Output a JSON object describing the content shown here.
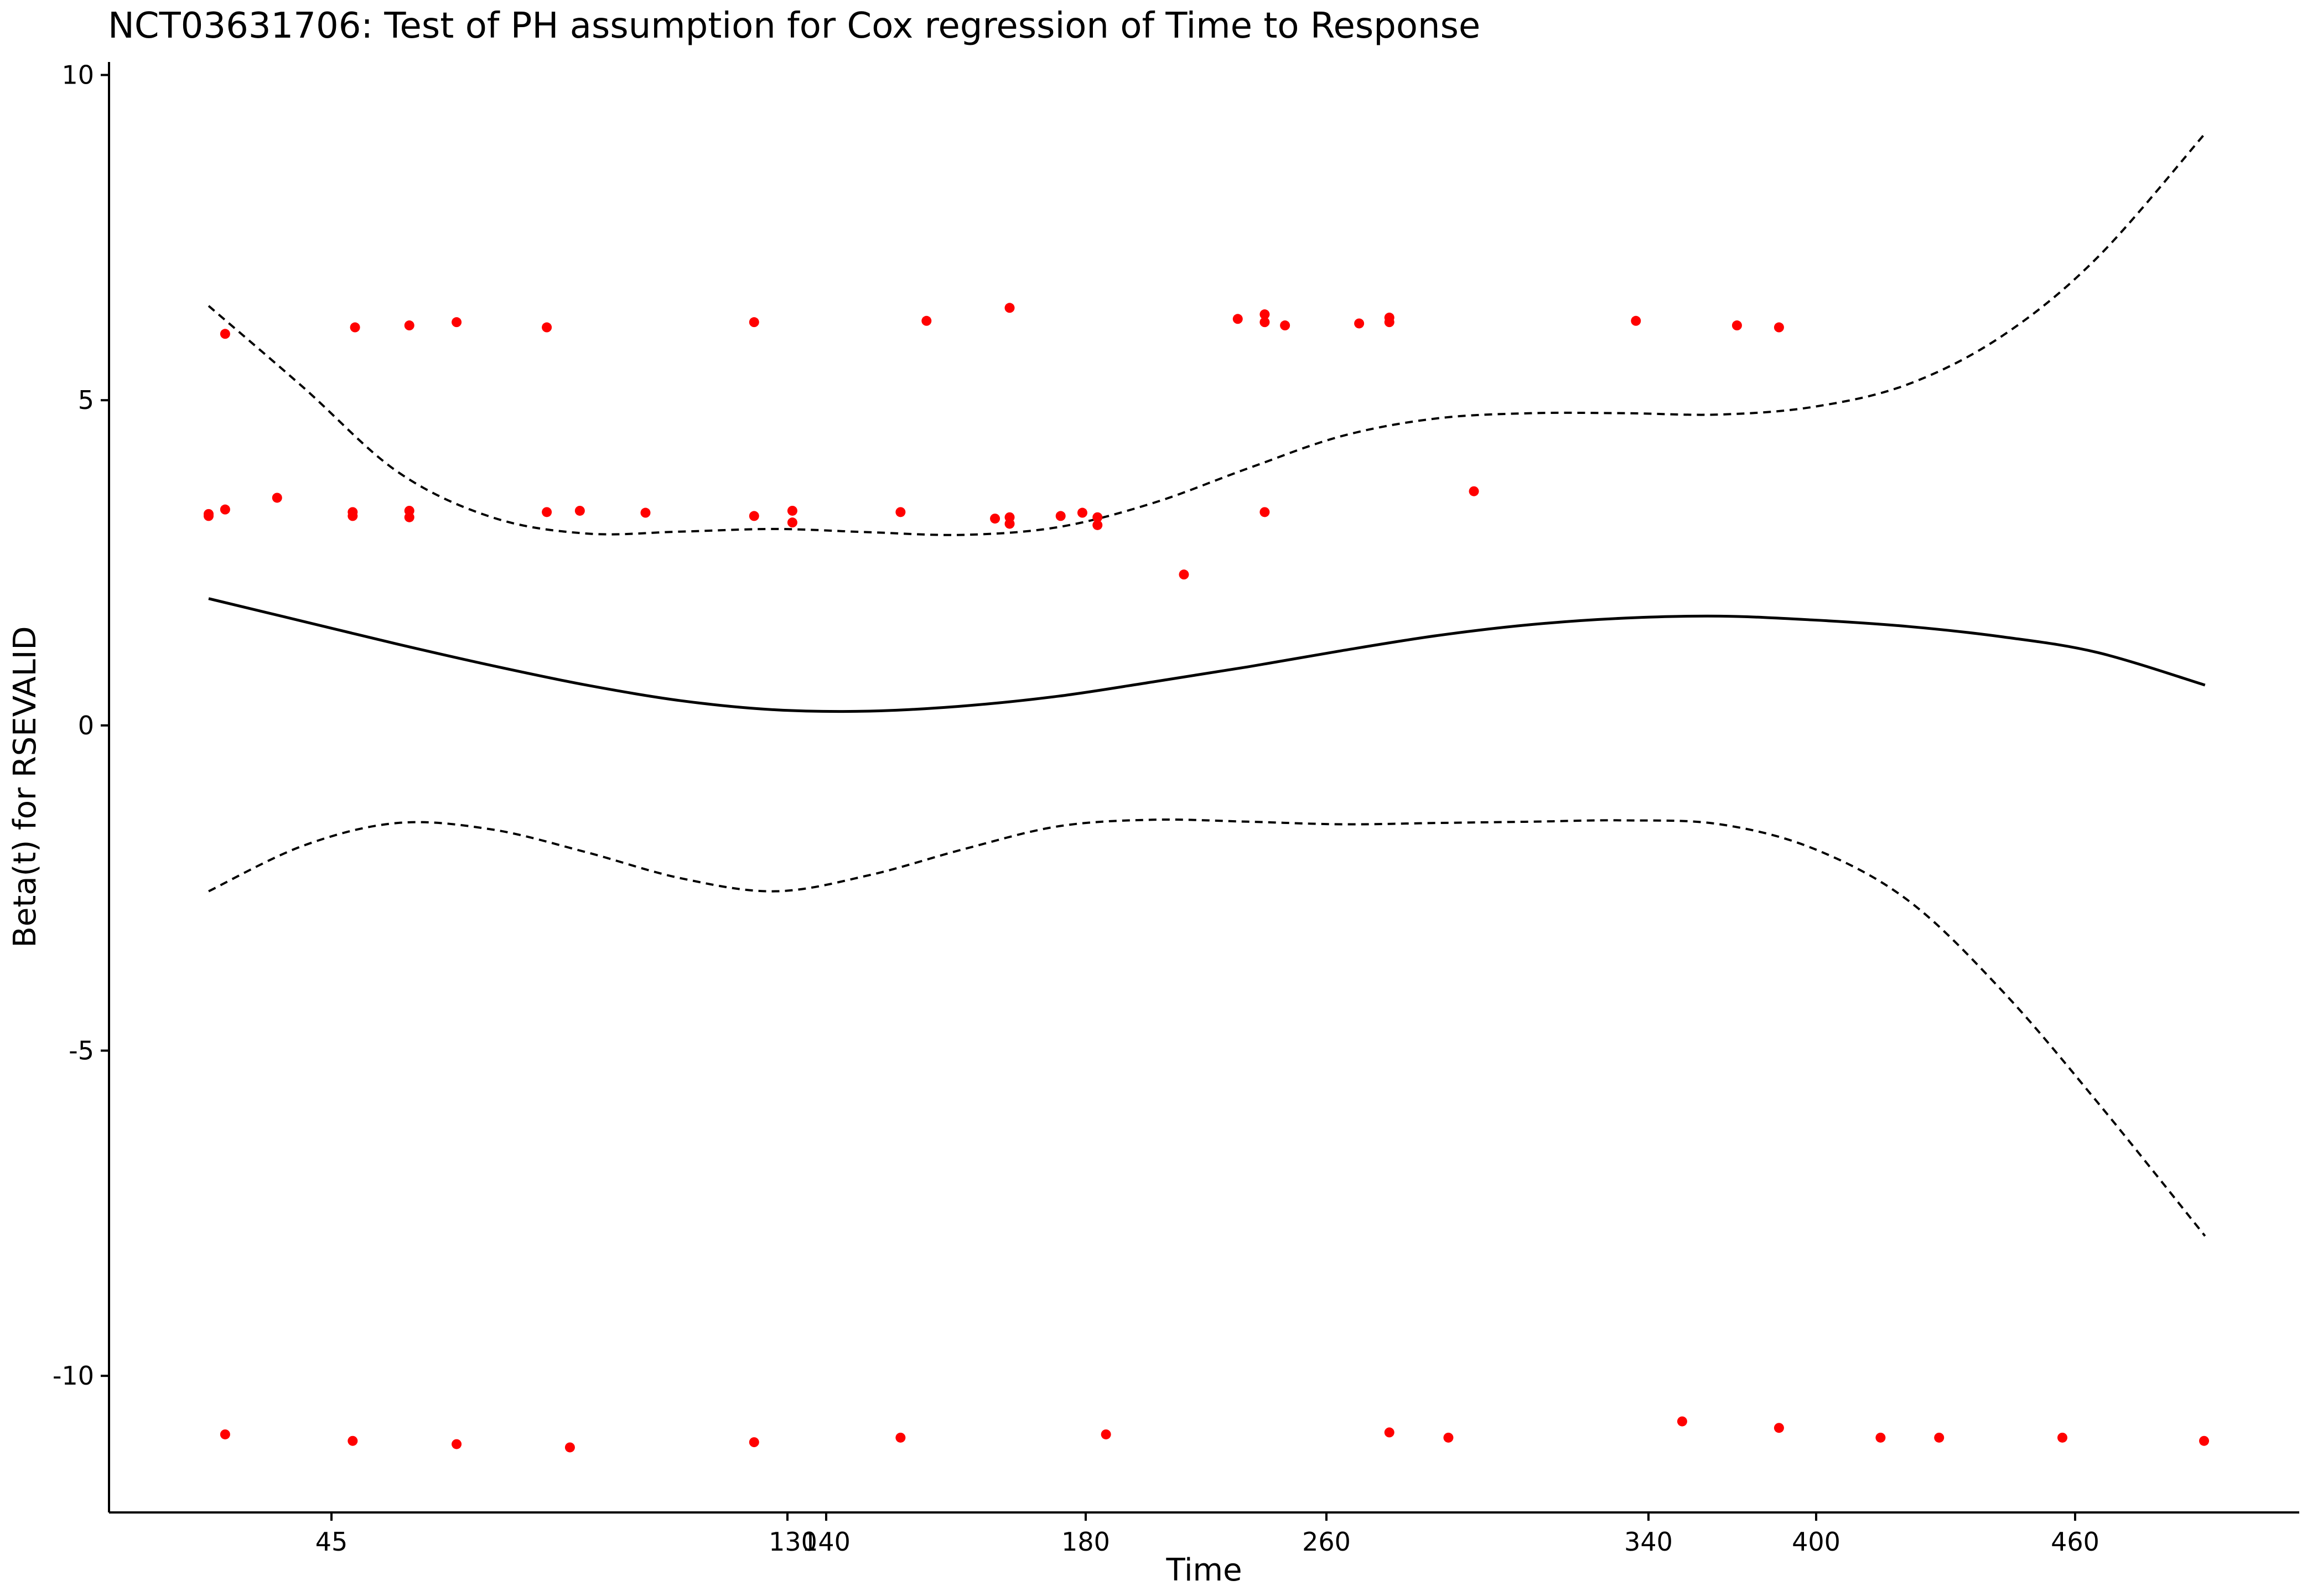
{
  "chart_data": {
    "type": "scatter",
    "title": "NCT03631706: Test of PH assumption for Cox regression of Time to Response",
    "xlabel": "Time",
    "ylabel": "Beta(t) for RSEVALID",
    "x_tick_labels": [
      "45",
      "130",
      "140",
      "180",
      "260",
      "340",
      "400",
      "460"
    ],
    "y_ticks": [
      10,
      5,
      0,
      -5,
      -10
    ],
    "y_tick_labels": [
      "10",
      "5",
      "0",
      "-5",
      "-10"
    ],
    "ylim": [
      -12.1,
      10.2
    ],
    "grid": false,
    "legend": "none",
    "colors": {
      "points": "#ff0000",
      "curves": "#000000",
      "axes": "#000000",
      "background": "#ffffff"
    },
    "series": [
      {
        "kind": "points",
        "x_rank": [
          1.0,
          1.35,
          4.05,
          5.25,
          8.16,
          8.86,
          12.55,
          13.36,
          15.65,
          17.96,
          19.04,
          19.82,
          23.36,
          27.79,
          1.0,
          2.45,
          4.05,
          5.25,
          10.25,
          13.36,
          17.65,
          17.96,
          19.5,
          19.82,
          21.65,
          22.79,
          23.36,
          23.79,
          25.36,
          26.0,
          31.22,
          33.36,
          34.25,
          1.35,
          4.1,
          5.25,
          6.25,
          8.16,
          12.55,
          16.2,
          17.96,
          23.36,
          26.0,
          27.25,
          36.4,
          37.64,
          1.35,
          4.05,
          6.25,
          8.65,
          12.55,
          15.65,
          20.0,
          26.0,
          32.2,
          34.25,
          40.25,
          43.25
        ],
        "y": [
          3.25,
          3.32,
          3.22,
          3.3,
          3.28,
          3.3,
          3.22,
          3.12,
          3.28,
          3.2,
          3.22,
          3.2,
          3.28,
          3.6,
          3.22,
          3.5,
          3.28,
          3.2,
          3.27,
          3.3,
          3.18,
          3.1,
          3.27,
          3.08,
          2.32,
          6.25,
          6.2,
          6.15,
          6.18,
          6.2,
          6.22,
          6.15,
          6.12,
          6.02,
          6.12,
          6.15,
          6.2,
          6.12,
          6.2,
          6.22,
          6.42,
          6.32,
          6.27,
          -10.95,
          -10.95,
          -10.95,
          -10.9,
          -11.0,
          -11.05,
          -11.1,
          -11.02,
          -10.95,
          -10.9,
          -10.87,
          -10.7,
          -10.8,
          -10.95,
          -11.0
        ]
      },
      {
        "kind": "fit",
        "style": "solid",
        "x_rank": [
          1.0,
          3.0,
          5.0,
          7.0,
          9.0,
          11.0,
          13.0,
          15.0,
          17.0,
          19.0,
          21.0,
          23.0,
          25.0,
          27.0,
          29.0,
          31.0,
          33.0,
          35.0,
          37.0,
          39.0,
          41.0,
          43.27
        ],
        "y": [
          1.95,
          1.6,
          1.25,
          0.92,
          0.62,
          0.38,
          0.24,
          0.22,
          0.3,
          0.45,
          0.67,
          0.9,
          1.15,
          1.38,
          1.55,
          1.65,
          1.68,
          1.62,
          1.52,
          1.36,
          1.12,
          0.62
        ]
      },
      {
        "kind": "upper_band",
        "style": "dashed",
        "x_rank": [
          1.0,
          3.0,
          5.0,
          7.0,
          9.0,
          11.0,
          13.0,
          15.0,
          17.0,
          19.0,
          21.0,
          23.0,
          25.0,
          27.0,
          29.0,
          31.0,
          33.0,
          35.0,
          37.0,
          39.0,
          41.0,
          43.27
        ],
        "y": [
          6.45,
          5.2,
          3.9,
          3.2,
          2.95,
          2.98,
          3.02,
          2.97,
          2.93,
          3.05,
          3.42,
          3.95,
          4.45,
          4.72,
          4.8,
          4.8,
          4.78,
          4.9,
          5.25,
          6.0,
          7.2,
          9.1
        ]
      },
      {
        "kind": "lower_band",
        "style": "dashed",
        "x_rank": [
          1.0,
          3.0,
          5.0,
          7.0,
          9.0,
          11.0,
          13.0,
          15.0,
          17.0,
          19.0,
          21.0,
          23.0,
          25.0,
          27.0,
          29.0,
          31.0,
          33.0,
          35.0,
          37.0,
          39.0,
          41.0,
          43.27
        ],
        "y": [
          -2.55,
          -1.85,
          -1.5,
          -1.6,
          -1.95,
          -2.35,
          -2.55,
          -2.3,
          -1.9,
          -1.55,
          -1.45,
          -1.48,
          -1.52,
          -1.5,
          -1.48,
          -1.46,
          -1.52,
          -1.9,
          -2.7,
          -4.1,
          -5.8,
          -7.85
        ]
      }
    ]
  }
}
